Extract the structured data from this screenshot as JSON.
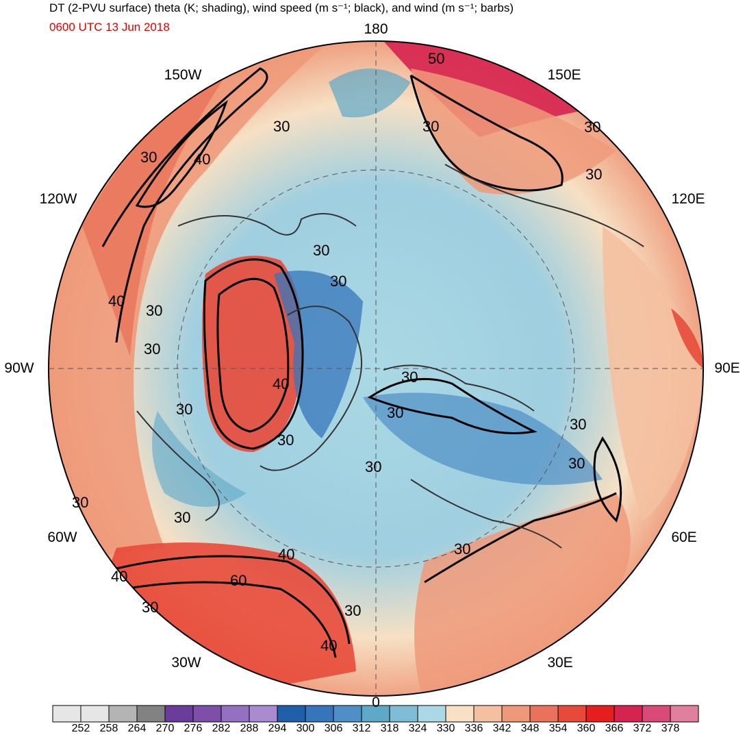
{
  "header": {
    "title": "DT (2-PVU surface) theta (K; shading), wind speed (m s⁻¹; black), and wind (m s⁻¹; barbs)",
    "valid_time": "0600 UTC 13 Jun 2018"
  },
  "map": {
    "projection": "north polar stereographic",
    "longitude_labels": {
      "top": "180",
      "top_left": "150W",
      "top_right": "150E",
      "upper_left": "120W",
      "upper_right": "120E",
      "left": "90W",
      "right": "90E",
      "lower_left": "60W",
      "lower_right": "60E",
      "bottom_left": "30W",
      "bottom_right": "30E",
      "bottom": "0"
    },
    "contour_labels": [
      "50",
      "30",
      "30",
      "30",
      "40",
      "30",
      "30",
      "30",
      "40",
      "30",
      "30",
      "30",
      "30",
      "40",
      "30",
      "30",
      "30",
      "30",
      "30",
      "30",
      "30",
      "40",
      "60",
      "30",
      "40",
      "30",
      "40",
      "30",
      "30"
    ]
  },
  "colorbar": {
    "tick_labels": [
      "252",
      "258",
      "264",
      "270",
      "276",
      "282",
      "288",
      "294",
      "300",
      "306",
      "312",
      "318",
      "324",
      "330",
      "336",
      "342",
      "348",
      "354",
      "360",
      "366",
      "372",
      "378"
    ],
    "colors": [
      "#e6e6e6",
      "#b4b4b4",
      "#828282",
      "#6a3d9a",
      "#7d4fa8",
      "#9470c0",
      "#a98bd0",
      "#1f5fa8",
      "#3576bb",
      "#4f8fc6",
      "#5ea8c8",
      "#7fbcd6",
      "#aad8e4",
      "#f7e0c4",
      "#f4c0a0",
      "#ee9a7a",
      "#e8735a",
      "#e84a3a",
      "#e61e1e",
      "#d62450",
      "#d94a78",
      "#e0809e"
    ]
  }
}
